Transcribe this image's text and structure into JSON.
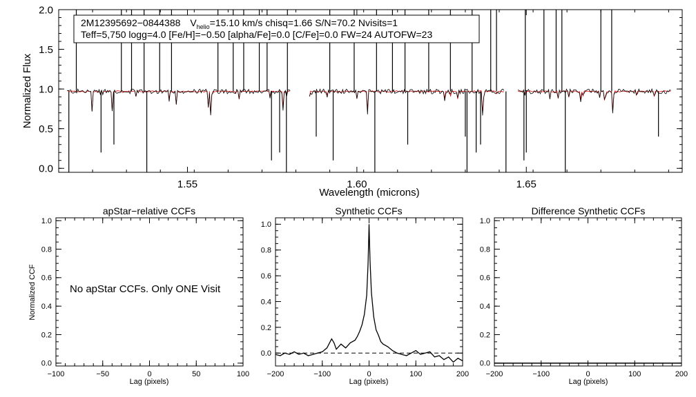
{
  "colors": {
    "observed": "#000000",
    "model": "#dd0000",
    "axis": "#000000"
  },
  "chart_data": [
    {
      "id": "spectrum",
      "type": "line",
      "xlabel": "Wavelength (microns)",
      "ylabel": "Normalized Flux",
      "xlim": [
        1.512,
        1.696
      ],
      "ylim": [
        -0.05,
        2.0
      ],
      "xticks": [
        1.55,
        1.6,
        1.65
      ],
      "xtick_labels": [
        "1.55",
        "1.60",
        "1.65"
      ],
      "yticks": [
        0.0,
        0.5,
        1.0,
        1.5,
        2.0
      ],
      "ytick_labels": [
        "0.0",
        "0.5",
        "1.0",
        "1.5",
        "2.0"
      ],
      "segments": [
        [
          1.5145,
          1.5805
        ],
        [
          1.586,
          1.6435
        ],
        [
          1.6475,
          1.693
        ]
      ],
      "continuum": 0.97,
      "series": [
        {
          "name": "observed spectrum",
          "color": "#000000"
        },
        {
          "name": "synthetic model",
          "color": "#dd0000"
        }
      ],
      "annotation": {
        "star": "2M12395692−0844388",
        "vhelio_prefix": "V",
        "vhelio_sub": "helio",
        "line1_rest": "=15.10 km/s  chisq=1.66  S/N=70.2  Nvisits=1",
        "line2": "Teff=5,750 logg=4.0 [Fe/H]=−0.50 [alpha/Fe]=0.0 [C/Fe]=0.0 FW=24 AUTOFW=23"
      }
    },
    {
      "id": "apstar-ccf",
      "type": "line",
      "title": "apStar−relative CCFs",
      "xlabel": "Lag (pixels)",
      "ylabel": "Normalized CCF",
      "xlim": [
        -100,
        100
      ],
      "ylim": [
        -0.02,
        1.02
      ],
      "xticks": [
        -100,
        -50,
        0,
        50,
        100
      ],
      "xtick_labels": [
        "−100",
        "−50",
        "0",
        "50",
        "100"
      ],
      "yticks": [
        0.0,
        0.2,
        0.4,
        0.6,
        0.8,
        1.0
      ],
      "ytick_labels": [
        "0.0",
        "0.2",
        "0.4",
        "0.6",
        "0.8",
        "1.0"
      ],
      "message": "No apStar CCFs.  Only ONE Visit"
    },
    {
      "id": "synthetic-ccf",
      "type": "line",
      "title": "Synthetic CCFs",
      "xlabel": "Lag (pixels)",
      "xlim": [
        -200,
        200
      ],
      "ylim": [
        -0.1,
        1.05
      ],
      "xticks": [
        -200,
        -100,
        0,
        100,
        200
      ],
      "xtick_labels": [
        "−200",
        "−100",
        "0",
        "100",
        "200"
      ],
      "yticks": [
        0.0,
        0.2,
        0.4,
        0.6,
        0.8,
        1.0
      ],
      "ytick_labels": [
        "0.0",
        "0.2",
        "0.4",
        "0.6",
        "0.8",
        "1.0"
      ],
      "reference_line": 0.0,
      "x": [
        -200,
        -190,
        -180,
        -170,
        -160,
        -150,
        -140,
        -130,
        -120,
        -110,
        -100,
        -90,
        -80,
        -75,
        -70,
        -60,
        -50,
        -40,
        -30,
        -25,
        -20,
        -15,
        -10,
        -5,
        -2,
        0,
        2,
        5,
        10,
        15,
        20,
        25,
        30,
        40,
        50,
        60,
        70,
        80,
        90,
        100,
        110,
        120,
        130,
        140,
        150,
        160,
        170,
        180,
        190,
        200
      ],
      "values": [
        -0.01,
        -0.02,
        0.0,
        -0.01,
        0.01,
        -0.01,
        0.0,
        -0.02,
        -0.01,
        0.0,
        0.01,
        0.04,
        0.11,
        0.08,
        0.03,
        0.07,
        0.04,
        0.08,
        0.1,
        0.13,
        0.17,
        0.22,
        0.3,
        0.45,
        0.7,
        1.0,
        0.72,
        0.47,
        0.28,
        0.18,
        0.14,
        0.09,
        0.07,
        0.05,
        0.02,
        0.0,
        -0.01,
        -0.02,
        0.0,
        0.02,
        -0.01,
        0.0,
        0.01,
        -0.03,
        -0.02,
        -0.05,
        -0.03,
        -0.07,
        -0.04,
        -0.06
      ]
    },
    {
      "id": "difference-ccf",
      "type": "line",
      "title": "Difference Synthetic CCFs",
      "xlabel": "Lag (pixels)",
      "xlim": [
        -200,
        200
      ],
      "ylim": [
        -0.02,
        1.02
      ],
      "xticks": [
        -200,
        -100,
        0,
        100,
        200
      ],
      "xtick_labels": [
        "−200",
        "−100",
        "0",
        "100",
        "200"
      ],
      "yticks": [
        0.0,
        0.2,
        0.4,
        0.6,
        0.8,
        1.0
      ],
      "ytick_labels": [
        "0.0",
        "0.2",
        "0.4",
        "0.6",
        "0.8",
        "1.0"
      ],
      "x": [
        -200,
        200
      ],
      "values": [
        0.0,
        0.0
      ]
    }
  ]
}
